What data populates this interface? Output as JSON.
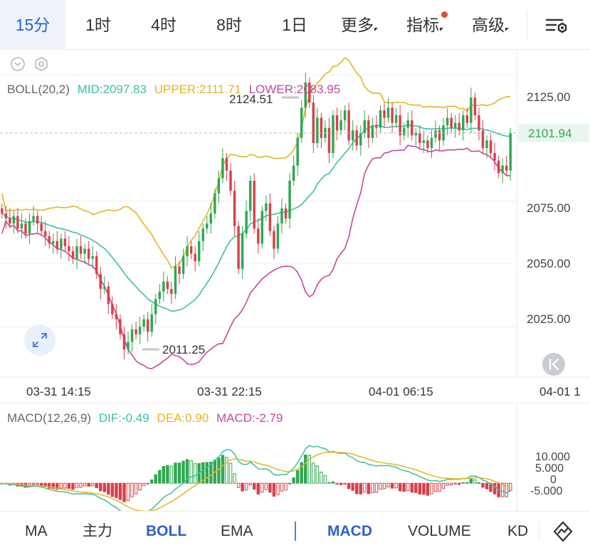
{
  "toolbar": {
    "timeframes": [
      {
        "label": "15分",
        "active": true
      },
      {
        "label": "1时"
      },
      {
        "label": "4时"
      },
      {
        "label": "8时"
      },
      {
        "label": "1日"
      },
      {
        "label": "更多"
      },
      {
        "label": "指标"
      },
      {
        "label": "高级"
      }
    ],
    "settings_icon": "chart-settings-icon"
  },
  "boll": {
    "name": "BOLL(20,2)",
    "mid": "MID:2097.83",
    "upper": "UPPER:2111.71",
    "lower": "LOWER:2083.95",
    "high_label": "2124.51",
    "low_label": "2011.25",
    "current_price": "2101.94",
    "price_ticks": [
      "2125.00",
      "2075.00",
      "2050.00",
      "2025.00"
    ],
    "time_labels": [
      "03-31 14:15",
      "03-31 22:15",
      "04-01 06:15",
      "04-01 1"
    ]
  },
  "macd": {
    "name": "MACD(12,26,9)",
    "dif": "DIF:-0.49",
    "dea": "DEA:0.90",
    "macd": "MACD:-2.79",
    "ticks": [
      "10.000",
      "5.000",
      "0",
      "-5.000"
    ]
  },
  "indicators": {
    "main": [
      "MA",
      "主力",
      "BOLL",
      "EMA"
    ],
    "sub": [
      "MACD",
      "VOLUME",
      "KD"
    ],
    "active_main": "BOLL",
    "active_sub": "MACD"
  },
  "colors": {
    "up": "#2fa84f",
    "down": "#d9404a",
    "mid": "#39c2a1",
    "upper": "#e6b422",
    "lower": "#c8479b",
    "accent": "#2a62c9"
  },
  "chart_data": [
    {
      "type": "candlestick",
      "title": "BOLL(20,2)",
      "x_ticks": [
        "03-31 14:15",
        "03-31 22:15",
        "04-01 06:15",
        "04-01 1"
      ],
      "ylim": [
        2005,
        2135
      ],
      "y_ticks": [
        2125,
        2075,
        2050,
        2025
      ],
      "closes": [
        2070,
        2068,
        2066,
        2069,
        2064,
        2066,
        2062,
        2067,
        2069,
        2066,
        2063,
        2061,
        2058,
        2059,
        2056,
        2060,
        2057,
        2055,
        2052,
        2057,
        2054,
        2056,
        2052,
        2053,
        2046,
        2040,
        2041,
        2034,
        2030,
        2028,
        2022,
        2016,
        2019,
        2024,
        2022,
        2025,
        2028,
        2023,
        2030,
        2036,
        2039,
        2043,
        2040,
        2038,
        2049,
        2046,
        2053,
        2057,
        2054,
        2051,
        2059,
        2064,
        2066,
        2070,
        2078,
        2084,
        2092,
        2087,
        2079,
        2065,
        2048,
        2062,
        2071,
        2083,
        2064,
        2058,
        2071,
        2074,
        2063,
        2056,
        2066,
        2072,
        2068,
        2083,
        2089,
        2100,
        2112,
        2122,
        2114,
        2098,
        2108,
        2100,
        2104,
        2094,
        2109,
        2103,
        2107,
        2111,
        2099,
        2103,
        2097,
        2102,
        2107,
        2100,
        2105,
        2104,
        2111,
        2108,
        2112,
        2106,
        2109,
        2101,
        2104,
        2107,
        2101,
        2102,
        2098,
        2099,
        2096,
        2100,
        2103,
        2099,
        2105,
        2108,
        2104,
        2106,
        2103,
        2109,
        2106,
        2116,
        2109,
        2103,
        2096,
        2099,
        2094,
        2091,
        2086,
        2089,
        2087,
        2102
      ],
      "high": 2124.51,
      "low": 2011.25,
      "last": 2101.94,
      "series": [
        {
          "name": "MID",
          "value": 2097.83
        },
        {
          "name": "UPPER",
          "value": 2111.71
        },
        {
          "name": "LOWER",
          "value": 2083.95
        }
      ]
    },
    {
      "type": "bar",
      "title": "MACD(12,26,9)",
      "ylim": [
        -9,
        13
      ],
      "y_ticks": [
        10,
        5,
        0,
        -5
      ],
      "series": [
        {
          "name": "DIF",
          "value": -0.49
        },
        {
          "name": "DEA",
          "value": 0.9
        },
        {
          "name": "MACD",
          "value": -2.79
        }
      ]
    }
  ]
}
